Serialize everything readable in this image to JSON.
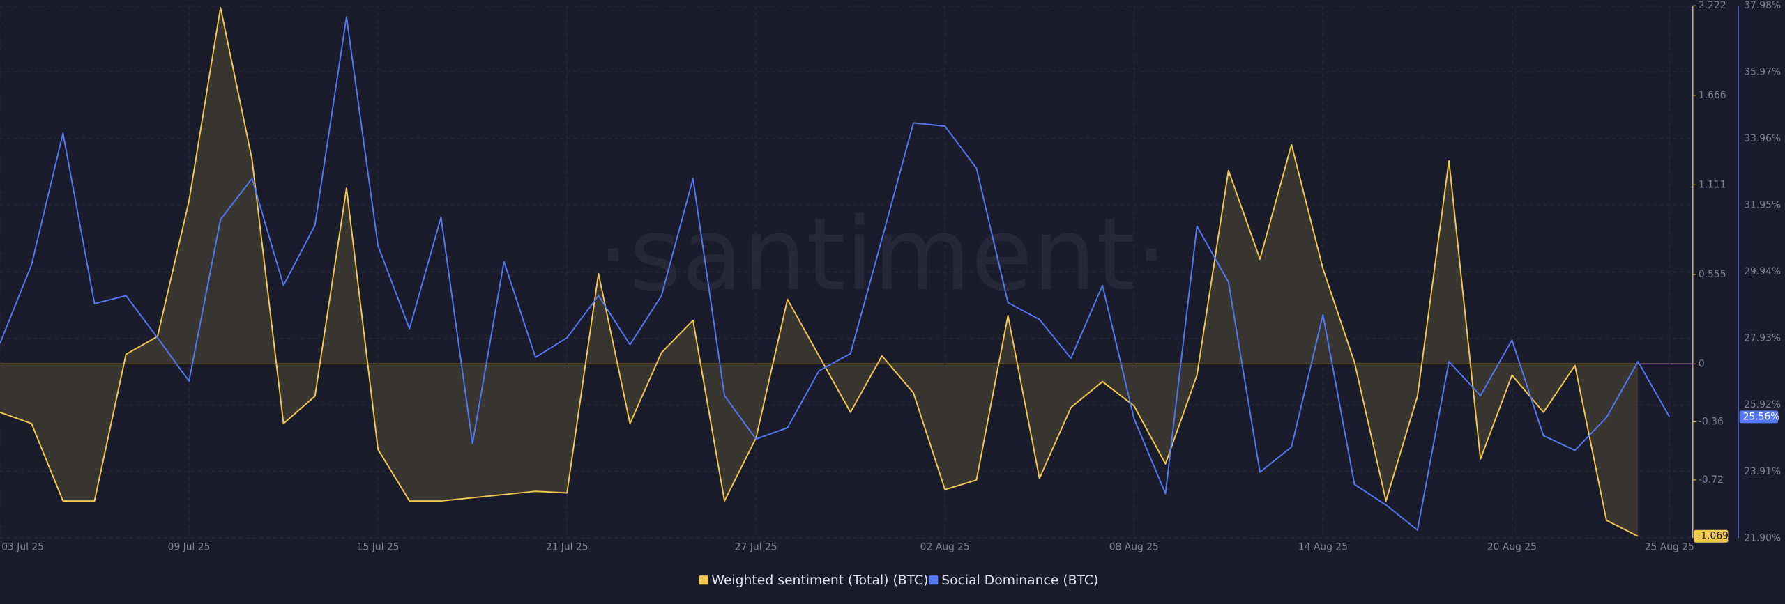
{
  "chart_data": {
    "type": "line",
    "watermark": "·santiment·",
    "categories": [
      "03 Jul 25",
      null,
      null,
      null,
      null,
      null,
      "09 Jul 25",
      null,
      null,
      null,
      null,
      null,
      "15 Jul 25",
      null,
      null,
      null,
      null,
      null,
      "21 Jul 25",
      null,
      null,
      null,
      null,
      null,
      "27 Jul 25",
      null,
      null,
      null,
      null,
      null,
      "02 Aug 25",
      null,
      null,
      null,
      null,
      null,
      "08 Aug 25",
      null,
      null,
      null,
      null,
      null,
      "14 Aug 25",
      null,
      null,
      null,
      null,
      null,
      "20 Aug 25",
      null,
      null,
      null,
      null,
      "25 Aug 25"
    ],
    "series": [
      {
        "name": "Weighted sentiment (Total) (BTC)",
        "color": "#f1c94e",
        "fill": "#3e3932",
        "values": [
          -0.3,
          -0.37,
          -0.85,
          -0.85,
          0.06,
          0.17,
          1.01,
          2.21,
          1.27,
          -0.37,
          -0.2,
          1.09,
          -0.53,
          -0.85,
          -0.85,
          -0.83,
          -0.81,
          -0.79,
          -0.8,
          0.56,
          -0.37,
          0.07,
          0.27,
          -0.85,
          -0.46,
          0.4,
          0.05,
          -0.3,
          0.05,
          -0.18,
          -0.78,
          -0.72,
          0.3,
          -0.71,
          -0.27,
          -0.11,
          -0.26,
          -0.62,
          -0.07,
          1.2,
          0.65,
          1.36,
          0.59,
          0.01,
          -0.85,
          -0.2,
          1.26,
          -0.59,
          -0.07,
          -0.3,
          -0.01,
          -0.97,
          -1.069,
          null
        ]
      },
      {
        "name": "Social Dominance (BTC)",
        "color": "#5477f2",
        "axis": "y2",
        "values": [
          27.78,
          30.15,
          34.13,
          28.98,
          29.22,
          27.95,
          26.64,
          31.52,
          32.76,
          29.53,
          31.35,
          37.64,
          30.73,
          28.22,
          31.59,
          24.75,
          30.25,
          27.36,
          27.95,
          29.22,
          27.74,
          29.22,
          32.76,
          26.2,
          24.89,
          25.23,
          26.95,
          27.47,
          30.94,
          34.44,
          34.34,
          33.07,
          29.01,
          28.5,
          27.33,
          29.53,
          25.51,
          23.24,
          31.32,
          29.63,
          23.89,
          24.65,
          28.64,
          23.52,
          22.9,
          22.14,
          27.23,
          26.2,
          27.88,
          24.99,
          24.55,
          25.54,
          27.23,
          25.56
        ],
        "value_labels": [
          null,
          null,
          null,
          null,
          null,
          null,
          null,
          null,
          null,
          null,
          null,
          null,
          null,
          null,
          null,
          null,
          null,
          null,
          null,
          null,
          null,
          null,
          null,
          null,
          null,
          null,
          null,
          null,
          null,
          null,
          null,
          null,
          null,
          null,
          null,
          null,
          null,
          null,
          null,
          null,
          null,
          null,
          null,
          null,
          null,
          null,
          null,
          null,
          null,
          null,
          null,
          null,
          null,
          "25.56%"
        ]
      }
    ],
    "ylim": [
      -1.08,
      2.222
    ],
    "yticks": [
      -0.72,
      -0.36,
      0,
      0.555,
      1.111,
      1.666,
      2.222
    ],
    "y2lim": [
      21.9,
      37.98
    ],
    "y2ticks": [
      {
        "value": 21.9,
        "label": "21.90%"
      },
      {
        "value": 23.91,
        "label": "23.91%"
      },
      {
        "value": 25.92,
        "label": "25.92%"
      },
      {
        "value": 27.93,
        "label": "27.93%"
      },
      {
        "value": 29.94,
        "label": "29.94%"
      },
      {
        "value": 31.95,
        "label": "31.95%"
      },
      {
        "value": 33.96,
        "label": "33.96%"
      },
      {
        "value": 35.97,
        "label": "35.97%"
      },
      {
        "value": 37.98,
        "label": "37.98%"
      }
    ],
    "grid": true,
    "legend": "bottom"
  }
}
